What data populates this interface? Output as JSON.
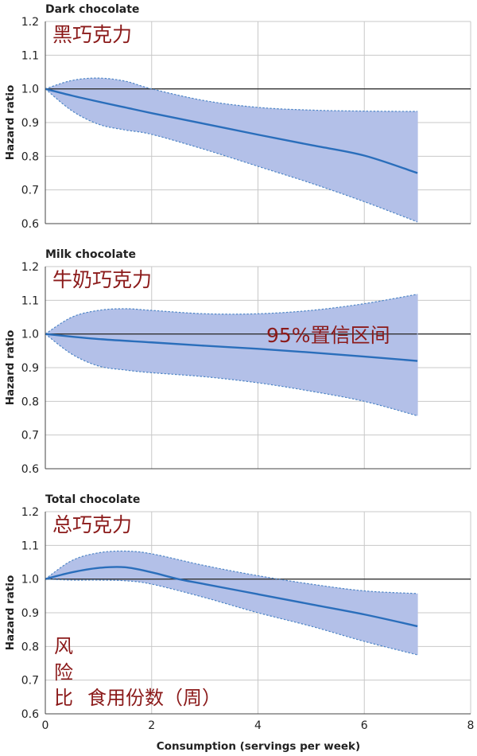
{
  "x_axis_title": "Consumption (servings per week)",
  "chart_data": [
    {
      "type": "line",
      "title": "Dark chocolate",
      "annotation_cn": "黑巧克力",
      "xlabel": "",
      "ylabel": "Hazard ratio",
      "xlim": [
        0,
        8
      ],
      "ylim": [
        0.6,
        1.2
      ],
      "x_ticks": [],
      "y_ticks": [
        "0.6",
        "0.7",
        "0.8",
        "0.9",
        "1.0",
        "1.1",
        "1.2"
      ],
      "reference_line": 1.0,
      "series": [
        {
          "x": [
            0,
            0.5,
            1,
            1.5,
            2,
            3,
            4,
            5,
            6,
            7
          ],
          "values": [
            1.0,
            0.98,
            0.962,
            0.945,
            0.928,
            0.896,
            0.864,
            0.833,
            0.802,
            0.75
          ]
        }
      ],
      "ci_upper": {
        "x": [
          0,
          0.5,
          1,
          1.5,
          2,
          3,
          4,
          5,
          6,
          7
        ],
        "values": [
          1.0,
          1.025,
          1.032,
          1.023,
          1.0,
          0.965,
          0.945,
          0.937,
          0.934,
          0.933
        ]
      },
      "ci_lower": {
        "x": [
          0,
          0.5,
          1,
          1.5,
          2,
          3,
          4,
          5,
          6,
          7
        ],
        "values": [
          1.0,
          0.935,
          0.895,
          0.878,
          0.865,
          0.82,
          0.77,
          0.72,
          0.665,
          0.605
        ]
      },
      "colors": {
        "line": "#2a6ebb",
        "band": "#b3c0e8",
        "band_edge": "#4f86c6",
        "reference": "#333333"
      }
    },
    {
      "type": "line",
      "title": "Milk chocolate",
      "annotation_cn": "牛奶巧克力",
      "ci_annotation_cn": "95%置信区间",
      "xlabel": "",
      "ylabel": "Hazard ratio",
      "xlim": [
        0,
        8
      ],
      "ylim": [
        0.6,
        1.2
      ],
      "x_ticks": [],
      "y_ticks": [
        "0.6",
        "0.7",
        "0.8",
        "0.9",
        "1.0",
        "1.1",
        "1.2"
      ],
      "reference_line": 1.0,
      "series": [
        {
          "x": [
            0,
            1,
            2,
            3,
            4,
            5,
            6,
            7
          ],
          "values": [
            1.0,
            0.985,
            0.975,
            0.965,
            0.956,
            0.945,
            0.933,
            0.92
          ]
        }
      ],
      "ci_upper": {
        "x": [
          0,
          0.5,
          1,
          1.5,
          2,
          3,
          4,
          5,
          6,
          7
        ],
        "values": [
          1.0,
          1.05,
          1.07,
          1.075,
          1.07,
          1.06,
          1.06,
          1.07,
          1.09,
          1.118
        ]
      },
      "ci_lower": {
        "x": [
          0,
          0.5,
          1,
          1.5,
          2,
          3,
          4,
          5,
          6,
          7
        ],
        "values": [
          1.0,
          0.94,
          0.905,
          0.893,
          0.885,
          0.873,
          0.855,
          0.83,
          0.8,
          0.757
        ]
      },
      "colors": {
        "line": "#2a6ebb",
        "band": "#b3c0e8",
        "band_edge": "#4f86c6",
        "reference": "#333333"
      }
    },
    {
      "type": "line",
      "title": "Total chocolate",
      "annotation_cn": "总巧克力",
      "ylabel_cn": [
        "风",
        "险",
        "比"
      ],
      "xlabel_cn": "食用份数（周）",
      "xlabel": "Consumption (servings per week)",
      "ylabel": "Hazard ratio",
      "xlim": [
        0,
        8
      ],
      "ylim": [
        0.6,
        1.2
      ],
      "x_ticks": [
        "0",
        "2",
        "4",
        "6",
        "8"
      ],
      "y_ticks": [
        "0.6",
        "0.7",
        "0.8",
        "0.9",
        "1.0",
        "1.1",
        "1.2"
      ],
      "reference_line": 1.0,
      "series": [
        {
          "x": [
            0,
            0.5,
            1,
            1.5,
            2,
            2.5,
            3,
            4,
            5,
            6,
            7
          ],
          "values": [
            1.0,
            1.02,
            1.033,
            1.035,
            1.02,
            1.0,
            0.985,
            0.955,
            0.925,
            0.895,
            0.86
          ]
        }
      ],
      "ci_upper": {
        "x": [
          0,
          0.5,
          1,
          1.5,
          2,
          3,
          4,
          5,
          6,
          7
        ],
        "values": [
          1.0,
          1.055,
          1.078,
          1.083,
          1.075,
          1.04,
          1.01,
          0.985,
          0.965,
          0.957
        ]
      },
      "ci_lower": {
        "x": [
          0,
          0.5,
          1,
          1.5,
          2,
          3,
          4,
          5,
          6,
          7
        ],
        "values": [
          1.0,
          0.997,
          0.997,
          0.995,
          0.985,
          0.945,
          0.9,
          0.86,
          0.815,
          0.775
        ]
      },
      "colors": {
        "line": "#2a6ebb",
        "band": "#b3c0e8",
        "band_edge": "#4f86c6",
        "reference": "#333333"
      }
    }
  ]
}
